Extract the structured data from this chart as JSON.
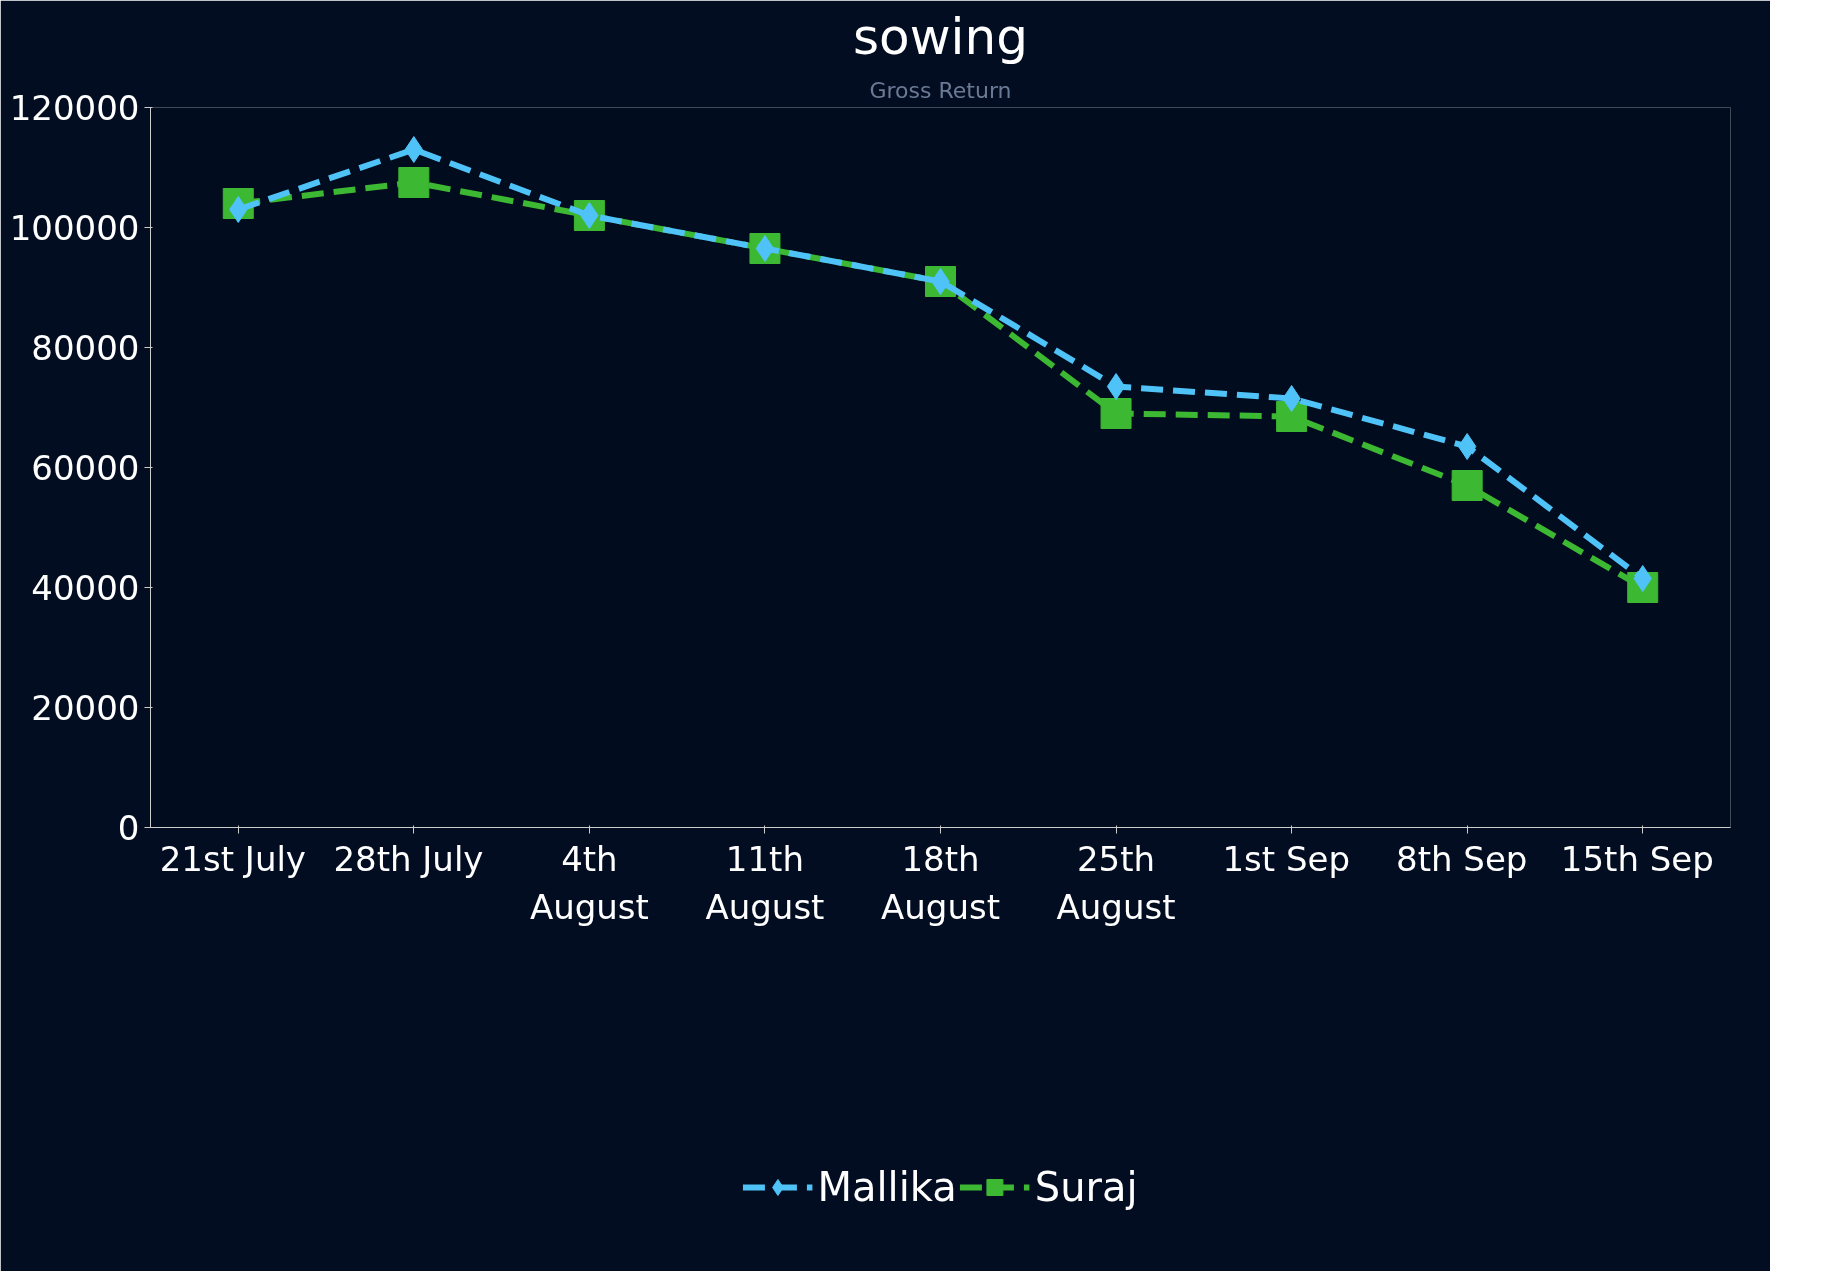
{
  "chart_data": {
    "type": "line",
    "title": "sowing",
    "subtitle": "Gross Return",
    "categories": [
      "21st  July",
      "28th  July",
      "4th\nAugust",
      "11th\nAugust",
      "18th\nAugust",
      "25th\nAugust",
      "1st  Sep",
      "8th  Sep",
      "15th  Sep"
    ],
    "series": [
      {
        "name": "Mallika",
        "color": "#4fc3f7",
        "marker": "diamond",
        "values": [
          103000,
          113000,
          102000,
          96500,
          91000,
          73500,
          71500,
          63500,
          41500
        ]
      },
      {
        "name": "Suraj",
        "color": "#3cb832",
        "marker": "square",
        "values": [
          104000,
          107500,
          102000,
          96500,
          91000,
          69000,
          68500,
          57000,
          40000
        ]
      }
    ],
    "ylim": [
      0,
      120000
    ],
    "yticks": [
      0,
      20000,
      40000,
      60000,
      80000,
      100000,
      120000
    ],
    "grid": false,
    "legend": "bottom",
    "line_style": "dashed"
  }
}
